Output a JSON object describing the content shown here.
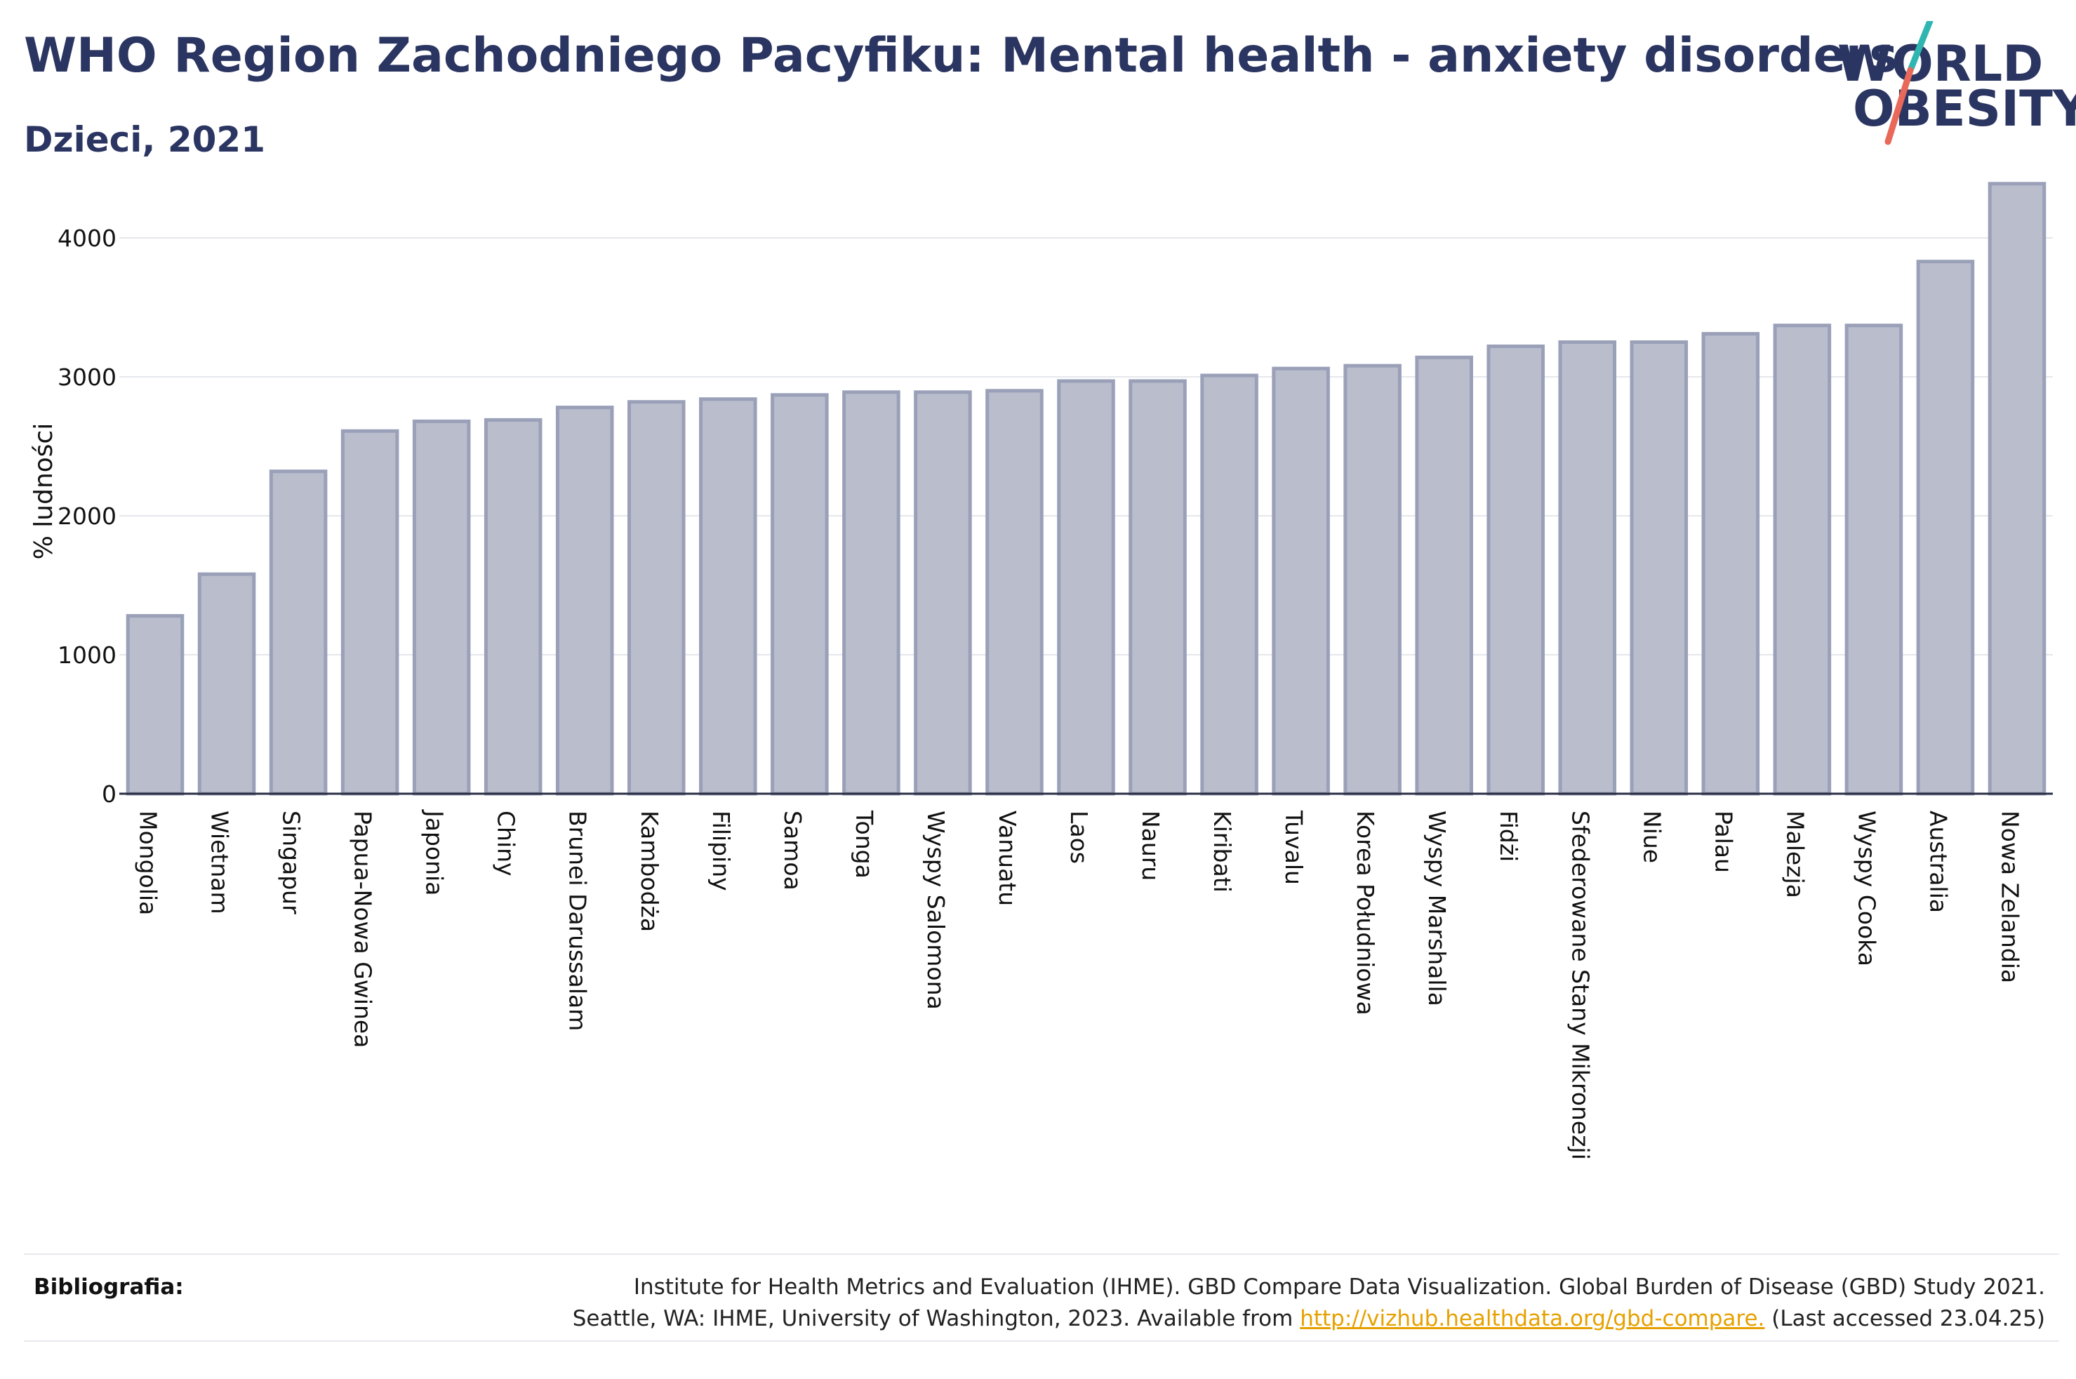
{
  "header": {
    "title": "WHO Region Zachodniego Pacyfiku: Mental health - anxiety disorders",
    "subtitle": "Dzieci, 2021"
  },
  "logo": {
    "line1": "WORLD",
    "line2": "OBESITY",
    "slash_colors": [
      "#2fb6b0",
      "#e8685a"
    ]
  },
  "chart_data": {
    "type": "bar",
    "ylabel": "% ludności",
    "xlabel": "",
    "ylim": [
      0,
      4500
    ],
    "yticks": [
      0,
      1000,
      2000,
      3000,
      4000
    ],
    "grid": true,
    "bar_fill": "#b9bdcc",
    "bar_stroke": "#9aa0b8",
    "categories": [
      "Mongolia",
      "Wietnam",
      "Singapur",
      "Papua-Nowa Gwinea",
      "Japonia",
      "Chiny",
      "Brunei Darussalam",
      "Kambodża",
      "Filipiny",
      "Samoa",
      "Tonga",
      "Wyspy Salomona",
      "Vanuatu",
      "Laos",
      "Nauru",
      "Kiribati",
      "Tuvalu",
      "Korea Południowa",
      "Wyspy Marshalla",
      "Fidżi",
      "Sfederowane Stany Mikronezji",
      "Niue",
      "Palau",
      "Malezja",
      "Wyspy Cooka",
      "Australia",
      "Nowa Zelandia"
    ],
    "values": [
      1280,
      1580,
      2320,
      2610,
      2680,
      2690,
      2780,
      2820,
      2840,
      2870,
      2890,
      2890,
      2900,
      2970,
      2970,
      3010,
      3060,
      3080,
      3140,
      3220,
      3250,
      3250,
      3310,
      3370,
      3370,
      3830,
      4390
    ]
  },
  "footer": {
    "label": "Bibliografia:",
    "line1": "Institute for Health Metrics and Evaluation (IHME). GBD Compare Data Visualization. Global Burden of Disease (GBD) Study 2021.",
    "line2_prefix": "Seattle, WA: IHME, University of Washington, 2023. Available from ",
    "link": "http://vizhub.healthdata.org/gbd-compare.",
    "line2_suffix": " (Last accessed 23.04.25)",
    "link_color": "#e6a100"
  }
}
